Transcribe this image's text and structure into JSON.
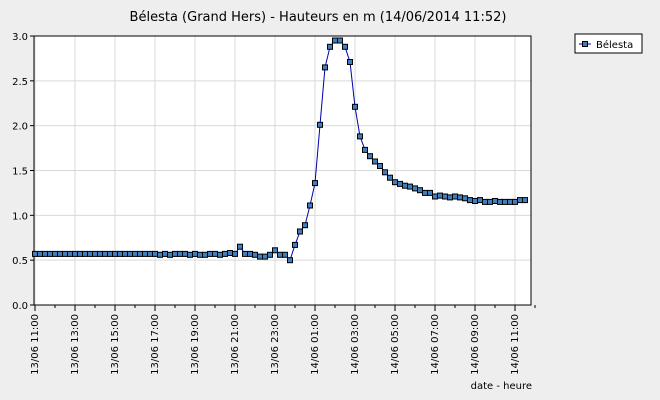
{
  "chart_data": {
    "type": "line",
    "title": "Bélesta (Grand Hers) - Hauteurs en m (14/06/2014 11:52)",
    "xlabel": "date - heure",
    "ylabel": "",
    "ylim": [
      0,
      3.0
    ],
    "yticks": [
      "0.0",
      "0.5",
      "1.0",
      "1.5",
      "2.0",
      "2.5",
      "3.0"
    ],
    "xlim_hours": [
      0,
      25
    ],
    "xtick_labels": [
      "13/06 11:00",
      "13/06 13:00",
      "13/06 15:00",
      "13/06 17:00",
      "13/06 19:00",
      "13/06 21:00",
      "13/06 23:00",
      "14/06 01:00",
      "14/06 03:00",
      "14/06 05:00",
      "14/06 07:00",
      "14/06 09:00",
      "14/06 11:00"
    ],
    "grid": true,
    "legend": "top-right",
    "line_color": "#0000aa",
    "marker_color": "#3f7fbf",
    "series": [
      {
        "name": "Bélesta",
        "time_step_minutes": 15,
        "start": "13/06 11:00",
        "values": [
          0.57,
          0.57,
          0.57,
          0.57,
          0.57,
          0.57,
          0.57,
          0.57,
          0.57,
          0.57,
          0.57,
          0.57,
          0.57,
          0.57,
          0.57,
          0.57,
          0.57,
          0.57,
          0.57,
          0.57,
          0.57,
          0.57,
          0.57,
          0.57,
          0.57,
          0.56,
          0.57,
          0.56,
          0.57,
          0.57,
          0.57,
          0.56,
          0.57,
          0.56,
          0.56,
          0.57,
          0.57,
          0.56,
          0.57,
          0.58,
          0.57,
          0.65,
          0.57,
          0.57,
          0.56,
          0.54,
          0.54,
          0.56,
          0.61,
          0.56,
          0.56,
          0.5,
          0.67,
          0.82,
          0.89,
          1.11,
          1.36,
          2.01,
          2.65,
          2.88,
          2.95,
          2.95,
          2.88,
          2.71,
          2.21,
          1.88,
          1.73,
          1.66,
          1.6,
          1.55,
          1.48,
          1.42,
          1.37,
          1.35,
          1.33,
          1.32,
          1.3,
          1.28,
          1.25,
          1.25,
          1.21,
          1.22,
          1.21,
          1.2,
          1.21,
          1.2,
          1.19,
          1.17,
          1.16,
          1.17,
          1.15,
          1.15,
          1.16,
          1.15,
          1.15,
          1.15,
          1.15,
          1.17,
          1.17
        ]
      }
    ]
  }
}
